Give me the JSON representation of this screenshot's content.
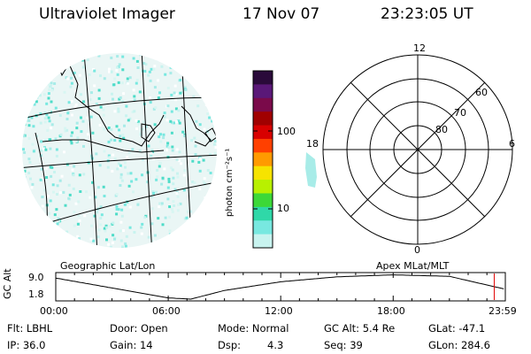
{
  "header": {
    "title": "Ultraviolet Imager",
    "date": "17 Nov 07",
    "time": "23:23:05 UT"
  },
  "colorbar": {
    "label": "photon cm⁻²s⁻¹",
    "ticks": [
      "100",
      "10"
    ],
    "colors": [
      "#2a0a3a",
      "#5a1878",
      "#7a0a4a",
      "#a00000",
      "#d80000",
      "#ff4000",
      "#ff9a00",
      "#f6e300",
      "#b8f000",
      "#3cd838",
      "#2fd8a8",
      "#78e8e0",
      "#c8f3ef"
    ]
  },
  "polar": {
    "mlt_labels": [
      "12",
      "6",
      "0",
      "18"
    ],
    "lat_labels": [
      "60",
      "70",
      "80"
    ]
  },
  "panel_captions": {
    "left": "Geographic Lat/Lon",
    "right": "Apex MLat/MLT"
  },
  "orbit": {
    "ylabel": "GC Alt",
    "y_max_label": "9.0",
    "y_min_label": "1.8",
    "x_ticks": [
      "00:00",
      "06:00",
      "12:00",
      "18:00",
      "23:59"
    ],
    "current_time_hours": 23.39
  },
  "footer": {
    "flt": "Flt: LBHL",
    "ip": "IP: 36.0",
    "door": "Door: Open",
    "gain": "Gain: 14",
    "mode": "Mode: Normal",
    "dsp": "Dsp:",
    "dsp_val": "4.3",
    "gcalt": "GC Alt: 5.4 Re",
    "seq": "Seq: 39",
    "glat": "GLat: -47.1",
    "glon": "GLon: 284.6"
  }
}
